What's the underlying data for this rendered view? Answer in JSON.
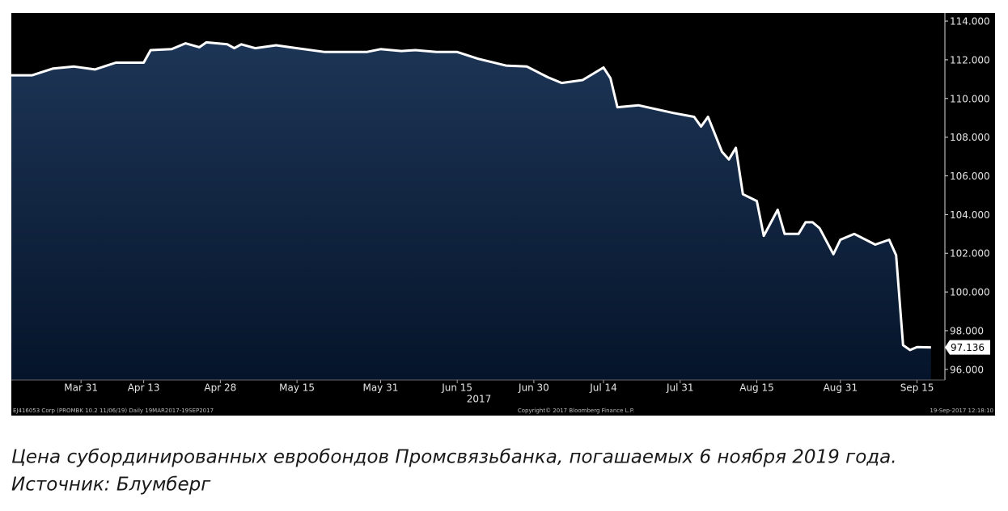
{
  "chart_data": {
    "type": "area",
    "xlabel": "2017",
    "x": [
      "2017-03-17",
      "2017-03-22",
      "2017-03-27",
      "2017-03-30",
      "2017-04-04",
      "2017-04-07",
      "2017-04-13",
      "2017-04-14",
      "2017-04-19",
      "2017-04-21",
      "2017-04-25",
      "2017-04-26",
      "2017-05-01",
      "2017-05-02",
      "2017-05-03",
      "2017-05-05",
      "2017-05-10",
      "2017-05-15",
      "2017-05-19",
      "2017-05-29",
      "2017-05-31",
      "2017-06-05",
      "2017-06-07",
      "2017-06-12",
      "2017-06-15",
      "2017-06-20",
      "2017-06-26",
      "2017-06-29",
      "2017-07-04",
      "2017-07-06",
      "2017-07-11",
      "2017-07-14",
      "2017-07-17",
      "2017-07-18",
      "2017-07-21",
      "2017-07-28",
      "2017-08-02",
      "2017-08-03",
      "2017-08-04",
      "2017-08-08",
      "2017-08-09",
      "2017-08-10",
      "2017-08-11",
      "2017-08-15",
      "2017-08-16",
      "2017-08-18",
      "2017-08-21",
      "2017-08-23",
      "2017-08-24",
      "2017-08-25",
      "2017-08-28",
      "2017-08-30",
      "2017-08-31",
      "2017-09-04",
      "2017-09-07",
      "2017-09-11",
      "2017-09-12",
      "2017-09-13",
      "2017-09-14",
      "2017-09-15",
      "2017-09-19"
    ],
    "series": [
      {
        "color": "#ffffff",
        "fill": "#1b3252",
        "values": [
          111.2,
          111.2,
          111.55,
          111.65,
          111.5,
          111.85,
          111.85,
          112.5,
          112.55,
          112.85,
          112.65,
          112.9,
          112.8,
          112.6,
          112.8,
          112.6,
          112.75,
          112.6,
          112.4,
          112.4,
          112.55,
          112.45,
          112.5,
          112.4,
          112.4,
          112.05,
          111.7,
          111.65,
          111.1,
          110.8,
          110.95,
          111.6,
          111.05,
          109.55,
          109.65,
          109.25,
          109.05,
          108.55,
          109.05,
          107.25,
          106.85,
          107.45,
          105.05,
          104.7,
          102.9,
          104.25,
          103.0,
          103.0,
          103.6,
          103.6,
          103.3,
          101.95,
          102.7,
          103.0,
          102.45,
          102.7,
          101.9,
          97.25,
          97.0,
          97.15,
          97.136
        ]
      }
    ],
    "xlim": [
      "2017-03-17",
      "2017-09-21"
    ],
    "xticks": [
      {
        "value": "2017-03-31",
        "label": "Mar 31"
      },
      {
        "value": "2017-04-13",
        "label": "Apr 13"
      },
      {
        "value": "2017-04-28",
        "label": "Apr 28"
      },
      {
        "value": "2017-05-15",
        "label": "May 15"
      },
      {
        "value": "2017-05-31",
        "label": "May 31"
      },
      {
        "value": "2017-06-15",
        "label": "Jun 15"
      },
      {
        "value": "2017-06-30",
        "label": "Jun 30"
      },
      {
        "value": "2017-07-14",
        "label": "Jul 14"
      },
      {
        "value": "2017-07-31",
        "label": "Jul 31"
      },
      {
        "value": "2017-08-15",
        "label": "Aug 15"
      },
      {
        "value": "2017-08-31",
        "label": "Aug 31"
      },
      {
        "value": "2017-09-15",
        "label": "Sep 15"
      }
    ],
    "ylim": [
      95.45,
      114.42
    ],
    "yticks": [
      {
        "value": 96,
        "label": "96.000"
      },
      {
        "value": 98,
        "label": "98.000"
      },
      {
        "value": 100,
        "label": "100.000"
      },
      {
        "value": 102,
        "label": "102.000"
      },
      {
        "value": 104,
        "label": "104.000"
      },
      {
        "value": 106,
        "label": "106.000"
      },
      {
        "value": 108,
        "label": "108.000"
      },
      {
        "value": 110,
        "label": "110.000"
      },
      {
        "value": 112,
        "label": "112.000"
      },
      {
        "value": 114,
        "label": "114.000"
      }
    ],
    "grid": false,
    "footer": {
      "left": "EJ416053 Corp (PROMBK 10.2 11/06/19)  Daily 19MAR2017-19SEP2017",
      "center": "Copyright© 2017 Bloomberg Finance L.P.",
      "right": "19-Sep-2017 12:18:10"
    },
    "caption": [
      "Цена субординированных евробондов Промсвязьбанка, погашаемых 6 ноября 2019 года.",
      "Источник: Блумберг"
    ]
  }
}
